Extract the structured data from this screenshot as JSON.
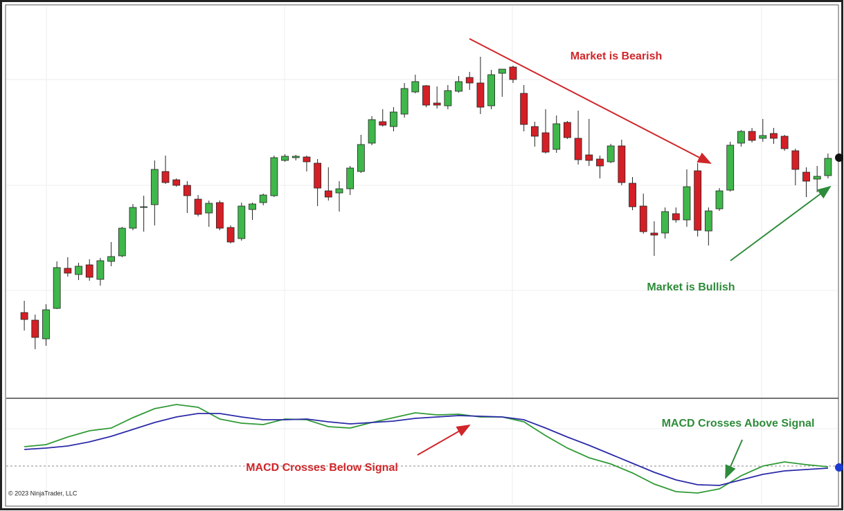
{
  "chart_data": [
    {
      "type": "candlestick",
      "open": [
        128,
        117,
        90,
        134,
        192,
        183,
        197,
        176,
        202,
        210,
        250,
        280,
        284,
        332,
        320,
        312,
        292,
        272,
        287,
        251,
        235,
        277,
        287,
        297,
        348,
        352,
        353,
        344,
        304,
        301,
        307,
        332,
        373,
        404,
        397,
        415,
        447,
        456,
        431,
        427,
        448,
        468,
        460,
        427,
        474,
        483,
        445,
        397,
        388,
        364,
        403,
        380,
        356,
        350,
        346,
        369,
        315,
        282,
        243,
        243,
        271,
        262,
        333,
        246,
        278,
        305,
        373,
        390,
        380,
        387,
        383,
        362,
        331,
        321,
        326
      ],
      "high": [
        145,
        125,
        140,
        202,
        208,
        200,
        205,
        207,
        230,
        252,
        285,
        297,
        348,
        355,
        322,
        318,
        298,
        290,
        290,
        254,
        287,
        287,
        300,
        355,
        357,
        356,
        355,
        350,
        338,
        318,
        340,
        385,
        412,
        422,
        425,
        460,
        472,
        457,
        455,
        457,
        470,
        476,
        498,
        479,
        480,
        485,
        457,
        404,
        422,
        413,
        405,
        420,
        408,
        355,
        372,
        378,
        324,
        300,
        260,
        280,
        280,
        335,
        344,
        280,
        308,
        375,
        392,
        395,
        408,
        395,
        385,
        365,
        338,
        340,
        358
      ],
      "low": [
        102,
        75,
        80,
        133,
        180,
        175,
        174,
        167,
        195,
        208,
        247,
        245,
        254,
        314,
        310,
        272,
        267,
        252,
        247,
        228,
        232,
        262,
        283,
        295,
        346,
        348,
        332,
        282,
        290,
        274,
        298,
        330,
        370,
        397,
        390,
        410,
        445,
        425,
        423,
        422,
        446,
        450,
        415,
        422,
        440,
        460,
        390,
        368,
        358,
        359,
        379,
        342,
        340,
        322,
        344,
        312,
        276,
        242,
        210,
        235,
        258,
        252,
        238,
        225,
        275,
        303,
        368,
        374,
        375,
        372,
        362,
        312,
        295,
        302,
        322
      ],
      "close": [
        118,
        92,
        132,
        193,
        185,
        195,
        179,
        203,
        209,
        250,
        280,
        281,
        335,
        316,
        312,
        297,
        270,
        286,
        250,
        230,
        282,
        285,
        298,
        352,
        354,
        354,
        346,
        308,
        295,
        307,
        337,
        371,
        407,
        399,
        418,
        452,
        462,
        428,
        428,
        449,
        462,
        460,
        425,
        472,
        480,
        465,
        400,
        383,
        360,
        401,
        381,
        349,
        348,
        340,
        369,
        316,
        281,
        245,
        240,
        274,
        262,
        310,
        247,
        275,
        304,
        370,
        390,
        377,
        384,
        380,
        365,
        335,
        318,
        325,
        351
      ],
      "up_color": "#3fb74a",
      "down_color": "#d41f26",
      "xlim": [
        -1.6,
        74.9
      ],
      "ylim": [
        4,
        574
      ],
      "annotations": [
        "Market is Bearish",
        "Market is Bullish"
      ]
    },
    {
      "type": "line",
      "x": [
        0,
        2,
        4,
        6,
        8,
        10,
        12,
        14,
        16,
        18,
        20,
        22,
        24,
        26,
        28,
        30,
        32,
        34,
        36,
        38,
        40,
        42,
        44,
        46,
        48,
        50,
        52,
        54,
        56,
        58,
        60,
        62,
        64,
        66,
        68,
        70,
        72,
        74
      ],
      "series": [
        {
          "color": "#2f9a35",
          "values": [
            28,
            31,
            42,
            51,
            55,
            70,
            83,
            89,
            85,
            68,
            62,
            60,
            68,
            67,
            57,
            55,
            63,
            70,
            77,
            74,
            75,
            71,
            71,
            64,
            44,
            26,
            12,
            3,
            -10,
            -26,
            -37,
            -39,
            -33,
            -14,
            0,
            6,
            2,
            -1
          ]
        },
        {
          "color": "#2a2aa8",
          "values": [
            24,
            26,
            29,
            35,
            43,
            53,
            63,
            71,
            76,
            76,
            71,
            67,
            67,
            68,
            64,
            61,
            63,
            65,
            69,
            71,
            73,
            72,
            71,
            67,
            55,
            42,
            30,
            17,
            4,
            -9,
            -20,
            -27,
            -28,
            -20,
            -12,
            -7,
            -5,
            -3
          ]
        }
      ],
      "xlim": [
        -1.6,
        74.9
      ],
      "ylim": [
        -54,
        96
      ],
      "annotations": [
        "MACD Crosses Below Signal",
        "MACD Crosses Above Signal"
      ]
    }
  ],
  "copyright": "© 2023 NinjaTrader, LLC"
}
